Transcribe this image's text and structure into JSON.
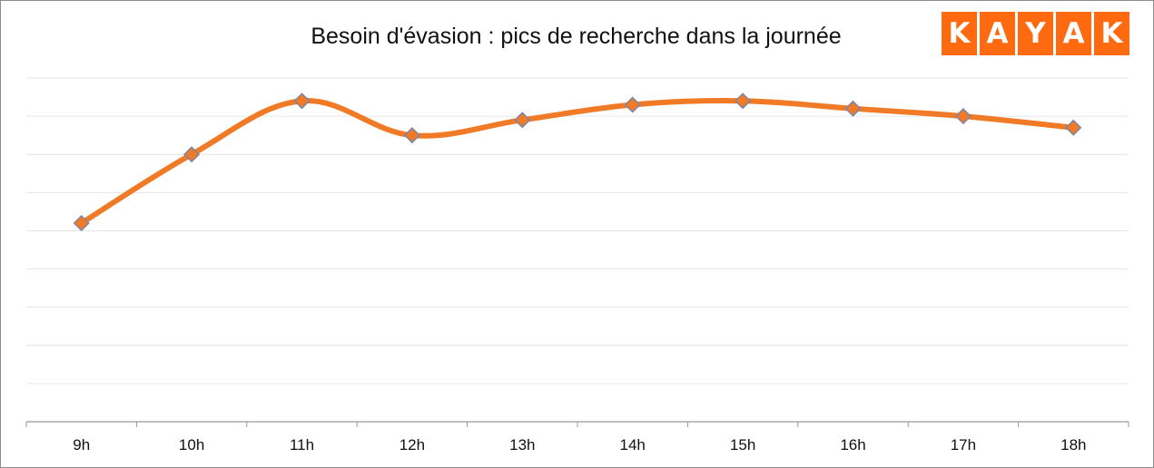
{
  "chart_data": {
    "type": "line",
    "title": "Besoin d'évasion : pics de recherche dans la journée",
    "xlabel": "",
    "ylabel": "",
    "categories": [
      "9h",
      "10h",
      "11h",
      "12h",
      "13h",
      "14h",
      "15h",
      "16h",
      "17h",
      "18h"
    ],
    "series": [
      {
        "values": [
          52,
          70,
          84,
          75,
          79,
          83,
          84,
          82,
          80,
          77
        ]
      }
    ],
    "ylim": [
      0,
      90
    ],
    "grid": true,
    "y_tick_labels_shown": false,
    "legend": "none",
    "colors": {
      "line": "#f07a26",
      "marker_fill": "#f07a26",
      "marker_stroke": "#7a86a8",
      "grid": "#e6e6e6",
      "axis": "#999999"
    }
  },
  "logo": {
    "letters": [
      "K",
      "A",
      "Y",
      "A",
      "K"
    ],
    "color": "#ff6a10"
  }
}
